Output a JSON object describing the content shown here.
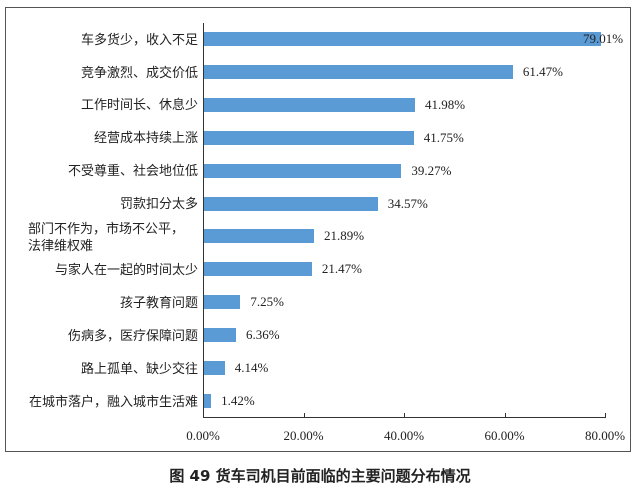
{
  "chart_data": {
    "type": "bar",
    "orientation": "horizontal",
    "title": "图 49 货车司机目前面临的主要问题分布情况",
    "xlabel": "",
    "ylabel": "",
    "xlim": [
      0,
      80
    ],
    "x_ticks": [
      "0.00%",
      "20.00%",
      "40.00%",
      "60.00%",
      "80.00%"
    ],
    "grid": false,
    "legend": null,
    "bar_color": "#5b9bd5",
    "categories": [
      "车多货少，收入不足",
      "竞争激烈、成交价低",
      "工作时间长、休息少",
      "经营成本持续上涨",
      "不受尊重、社会地位低",
      "罚款扣分太多",
      "部门不作为，市场不公平，法律维权难",
      "与家人在一起的时间太少",
      "孩子教育问题",
      "伤病多，医疗保障问题",
      "路上孤单、缺少交往",
      "在城市落户，融入城市生活难"
    ],
    "values": [
      79.01,
      61.47,
      41.98,
      41.75,
      39.27,
      34.57,
      21.89,
      21.47,
      7.25,
      6.36,
      4.14,
      1.42
    ],
    "value_labels": [
      "79.01%",
      "61.47%",
      "41.98%",
      "41.75%",
      "39.27%",
      "34.57%",
      "21.89%",
      "21.47%",
      "7.25%",
      "6.36%",
      "4.14%",
      "1.42%"
    ]
  },
  "labels": {
    "cat_0": "车多货少，收入不足",
    "cat_1": "竞争激烈、成交价低",
    "cat_2": "工作时间长、休息少",
    "cat_3": "经营成本持续上涨",
    "cat_4": "不受尊重、社会地位低",
    "cat_5": "罚款扣分太多",
    "cat_6a": "部门不作为，市场不公平，",
    "cat_6b": "法律维权难",
    "cat_7": "与家人在一起的时间太少",
    "cat_8": "孩子教育问题",
    "cat_9": "伤病多，医疗保障问题",
    "cat_10": "路上孤单、缺少交往",
    "cat_11": "在城市落户，融入城市生活难"
  },
  "caption": "图 49  货车司机目前面临的主要问题分布情况"
}
